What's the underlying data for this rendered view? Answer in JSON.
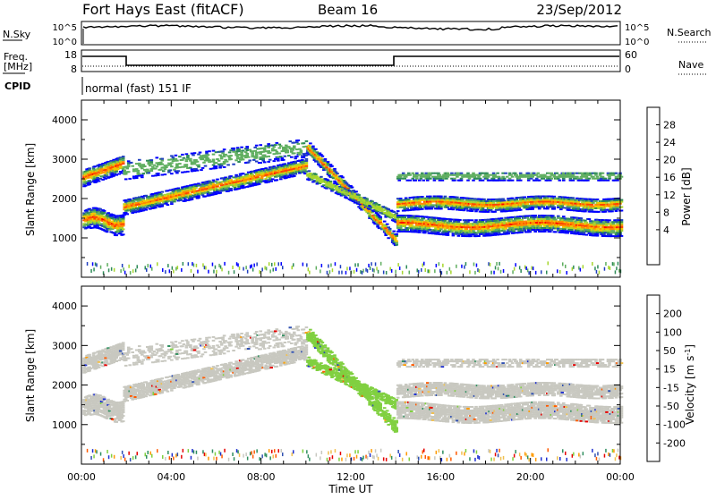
{
  "header": {
    "station": "Fort Hays East (fitACF)",
    "beam": "Beam 16",
    "date": "23/Sep/2012"
  },
  "noise_panel": {
    "left_label": "N.Sky",
    "right_label": "N.Search",
    "left_ticks": [
      "10^5",
      "10^0"
    ],
    "right_ticks": [
      "10^5",
      "10^0"
    ]
  },
  "freq_panel": {
    "left_label_line1": "Freq.",
    "left_label_line2": "[MHz]",
    "left_ticks": [
      "18",
      "8"
    ],
    "right_label": "Nave",
    "right_ticks": [
      "60",
      "0"
    ],
    "cpid_label": "CPID",
    "mode_text": "normal (fast) 151 IF"
  },
  "colors": {
    "power_scale": [
      "#0000ff",
      "#1f3fbf",
      "#2e8b57",
      "#5fae5f",
      "#a6d62e",
      "#f0c800",
      "#ff8c00",
      "#ff4500",
      "#ff0000"
    ],
    "velocity_scale": [
      "#e60000",
      "#ff5a00",
      "#ff9a00",
      "#f0c050",
      "#c8c8c0",
      "#80d040",
      "#2f8f5f",
      "#3050b0",
      "#1e2fd0"
    ]
  },
  "chart_data": [
    {
      "type": "heatmap",
      "title": "",
      "ylabel": "Slant Range [km]",
      "ylim": [
        0,
        4500
      ],
      "y_ticks": [
        "1000",
        "2000",
        "3000",
        "4000"
      ],
      "colorbar": {
        "label": "Power [dB]",
        "range": [
          0,
          32
        ],
        "tick_labels": [
          "4",
          "8",
          "12",
          "16",
          "20",
          "24",
          "28"
        ]
      }
    },
    {
      "type": "heatmap",
      "title": "",
      "ylabel": "Slant Range [km]",
      "xlabel": "Time UT",
      "ylim": [
        0,
        4500
      ],
      "y_ticks": [
        "1000",
        "2000",
        "3000",
        "4000"
      ],
      "x_ticks": [
        "00:00",
        "04:00",
        "08:00",
        "12:00",
        "16:00",
        "20:00",
        "00:00"
      ],
      "colorbar": {
        "label_main": "Velocity [m s",
        "label_sup": "-1",
        "label_end": "]",
        "range": [
          -250,
          250
        ],
        "tick_labels": [
          "200",
          "100",
          "50",
          "15",
          "-15",
          "-50",
          "-100",
          "-200"
        ]
      }
    }
  ]
}
